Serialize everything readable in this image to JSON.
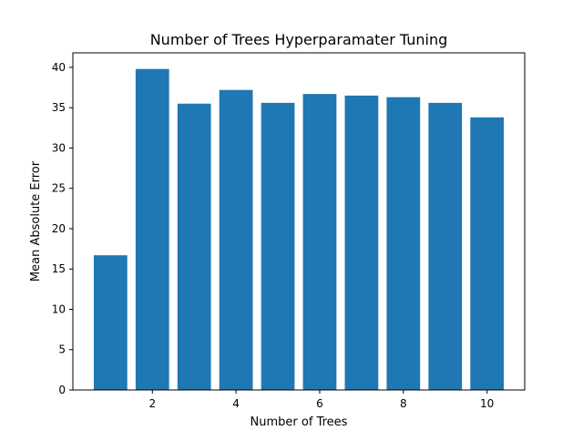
{
  "chart_data": {
    "type": "bar",
    "title": "Number of Trees Hyperparamater Tuning",
    "xlabel": "Number of Trees",
    "ylabel": "Mean Absolute Error",
    "x": [
      1,
      2,
      3,
      4,
      5,
      6,
      7,
      8,
      9,
      10
    ],
    "values": [
      16.7,
      39.8,
      35.5,
      37.2,
      35.6,
      36.7,
      36.5,
      36.3,
      35.6,
      33.8
    ],
    "xlim": [
      0.1,
      10.9
    ],
    "ylim": [
      0,
      41.8
    ],
    "xticks": [
      2,
      4,
      6,
      8,
      10
    ],
    "yticks": [
      0,
      5,
      10,
      15,
      20,
      25,
      30,
      35,
      40
    ],
    "bar_color": "#1f77b4",
    "grid": false,
    "legend": "none"
  }
}
